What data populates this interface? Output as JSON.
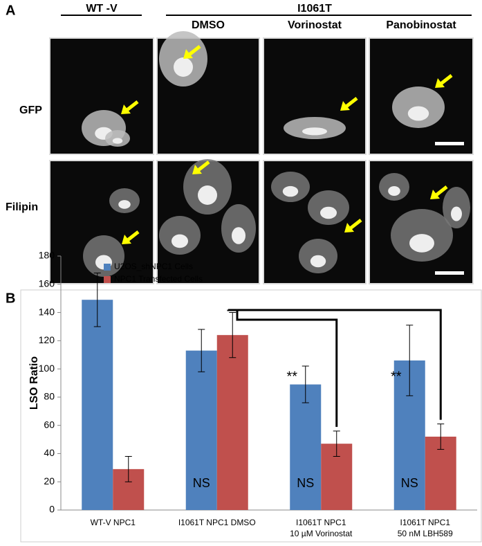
{
  "panel_a": {
    "label": "A",
    "group_wt": "WT -V",
    "group_mutant": "I1061T",
    "columns": [
      "DMSO",
      "Vorinostat",
      "Panobinostat"
    ],
    "rows": [
      "GFP",
      "Filipin"
    ]
  },
  "panel_b": {
    "label": "B"
  },
  "chart_data": {
    "type": "bar",
    "ylabel": "LSO Ratio",
    "categories": [
      "WT-V NPC1",
      "I1061T NPC1 DMSO",
      "I1061T NPC1\n10 µM Vorinostat",
      "I1061T NPC1\n50 nM LBH589"
    ],
    "series": [
      {
        "name": "U2OS_shNPC1 Cells",
        "color": "#4f81bd",
        "values": [
          149,
          113,
          89,
          106
        ],
        "errors": [
          19,
          15,
          13,
          25
        ]
      },
      {
        "name": "NPC1 Transfected Cells",
        "color": "#c0504d",
        "values": [
          29,
          124,
          47,
          52
        ],
        "errors": [
          9,
          16,
          9,
          9
        ]
      }
    ],
    "ylim": [
      0,
      180
    ],
    "yticks": [
      0,
      20,
      40,
      60,
      80,
      100,
      120,
      140,
      160,
      180
    ],
    "legend": "upper left",
    "annotations": [
      "NS",
      "NS",
      "NS",
      "**",
      "**"
    ]
  }
}
